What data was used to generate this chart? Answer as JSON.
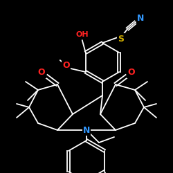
{
  "background": "#000000",
  "bond_color": "#ffffff",
  "atom_colors": {
    "N": "#3399ff",
    "O": "#ff2222",
    "S": "#ccaa00",
    "C": "#ffffff"
  },
  "figsize": [
    2.5,
    2.5
  ],
  "dpi": 100,
  "atoms": [],
  "bonds": []
}
